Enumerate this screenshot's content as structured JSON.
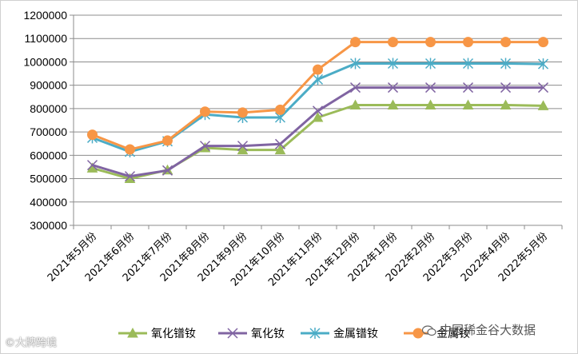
{
  "chart_data": {
    "type": "line",
    "title": "",
    "xlabel": "",
    "ylabel": "",
    "categories": [
      "2021年5月份",
      "2021年6月份",
      "2021年7月份",
      "2021年8月份",
      "2021年9月份",
      "2021年10月份",
      "2021年11月份",
      "2021年12月份",
      "2022年1月份",
      "2022年2月份",
      "2022年3月份",
      "2022年4月份",
      "2022年5月份"
    ],
    "ylim": [
      300000,
      1200000
    ],
    "yticks": [
      "300000",
      "400000",
      "500000",
      "600000",
      "700000",
      "800000",
      "900000",
      "1000000",
      "1100000",
      "1200000"
    ],
    "grid": "horizontal",
    "legend_position": "bottom",
    "series": [
      {
        "name": "氧化镨钕",
        "color": "#9BBB59",
        "marker": "triangle",
        "values": [
          545000,
          500000,
          537000,
          632000,
          623000,
          623000,
          762000,
          815000,
          815000,
          815000,
          815000,
          815000,
          812000
        ]
      },
      {
        "name": "氧化钕",
        "color": "#8064A2",
        "marker": "x",
        "values": [
          558000,
          510000,
          535000,
          640000,
          640000,
          648000,
          790000,
          890000,
          890000,
          890000,
          890000,
          890000,
          890000
        ]
      },
      {
        "name": "金属镨钕",
        "color": "#4BACC6",
        "marker": "star",
        "values": [
          675000,
          615000,
          660000,
          775000,
          762000,
          762000,
          925000,
          993000,
          993000,
          993000,
          993000,
          993000,
          991000
        ]
      },
      {
        "name": "金属钕",
        "color": "#F79646",
        "marker": "circle",
        "values": [
          688000,
          625000,
          663000,
          787000,
          783000,
          795000,
          967000,
          1085000,
          1085000,
          1085000,
          1085000,
          1085000,
          1085000
        ]
      }
    ]
  },
  "watermarks": {
    "left": "©大牌跨境",
    "right": "中国稀金谷大数据"
  }
}
